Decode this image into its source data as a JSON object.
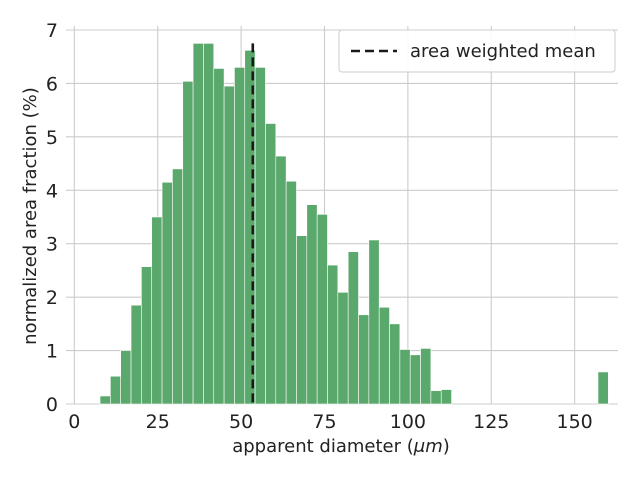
{
  "chart_data": {
    "type": "bar",
    "title": "",
    "xlabel": "apparent diameter (",
    "xlabel_unit": "μm",
    "xlabel_suffix": ")",
    "ylabel": "normalized area fraction (%)",
    "xlim": [
      -2.5,
      163
    ],
    "ylim": [
      0,
      7
    ],
    "xticks": [
      0,
      25,
      50,
      75,
      100,
      125,
      150
    ],
    "yticks": [
      0,
      1,
      2,
      3,
      4,
      5,
      6,
      7
    ],
    "grid": true,
    "legend_position": "top-right",
    "bar_color": "#5aa86b",
    "bin_width": 3.1,
    "bins": [
      {
        "x": 7.7,
        "value": 0.15
      },
      {
        "x": 10.8,
        "value": 0.52
      },
      {
        "x": 13.9,
        "value": 1.0
      },
      {
        "x": 17.0,
        "value": 1.85
      },
      {
        "x": 20.1,
        "value": 2.57
      },
      {
        "x": 23.2,
        "value": 3.5
      },
      {
        "x": 26.3,
        "value": 4.15
      },
      {
        "x": 29.4,
        "value": 4.4
      },
      {
        "x": 32.5,
        "value": 6.04
      },
      {
        "x": 35.6,
        "value": 6.75
      },
      {
        "x": 38.7,
        "value": 6.75
      },
      {
        "x": 41.8,
        "value": 6.28
      },
      {
        "x": 44.9,
        "value": 5.95
      },
      {
        "x": 48.0,
        "value": 6.3
      },
      {
        "x": 51.1,
        "value": 6.62
      },
      {
        "x": 54.2,
        "value": 6.3
      },
      {
        "x": 57.3,
        "value": 5.25
      },
      {
        "x": 60.4,
        "value": 4.64
      },
      {
        "x": 63.5,
        "value": 4.17
      },
      {
        "x": 66.6,
        "value": 3.15
      },
      {
        "x": 69.7,
        "value": 3.73
      },
      {
        "x": 72.8,
        "value": 3.55
      },
      {
        "x": 75.9,
        "value": 2.6
      },
      {
        "x": 79.0,
        "value": 2.09
      },
      {
        "x": 82.1,
        "value": 2.85
      },
      {
        "x": 85.2,
        "value": 1.67
      },
      {
        "x": 88.3,
        "value": 3.07
      },
      {
        "x": 91.4,
        "value": 1.81
      },
      {
        "x": 94.5,
        "value": 1.5
      },
      {
        "x": 97.6,
        "value": 1.02
      },
      {
        "x": 100.7,
        "value": 0.92
      },
      {
        "x": 103.8,
        "value": 1.04
      },
      {
        "x": 106.9,
        "value": 0.25
      },
      {
        "x": 110.0,
        "value": 0.27
      },
      {
        "x": 157.0,
        "value": 0.6
      }
    ],
    "series": [
      {
        "name": "area weighted mean",
        "type": "vline",
        "x": 53.5,
        "y_range": [
          0,
          6.75
        ],
        "color": "#1a1a1a",
        "dash": "dashed"
      }
    ]
  }
}
